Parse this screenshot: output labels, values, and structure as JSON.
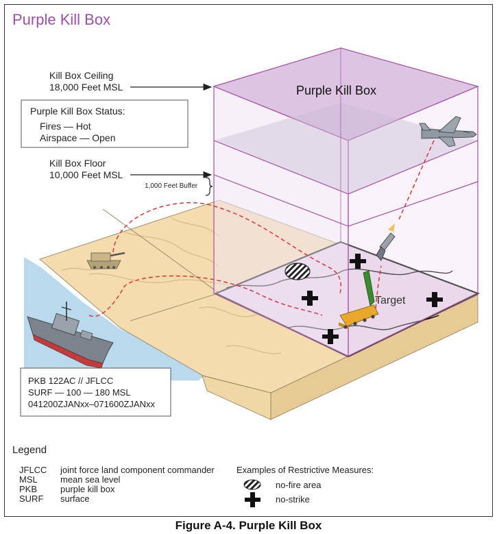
{
  "title": "Purple Kill Box",
  "box_label": "Purple Kill Box",
  "ceiling": {
    "line1": "Kill Box Ceiling",
    "line2": "18,000 Feet MSL"
  },
  "floor": {
    "line1": "Kill Box Floor",
    "line2": "10,000 Feet MSL"
  },
  "buffer_label": "1,000 Feet Buffer",
  "status": {
    "heading": "Purple Kill Box Status:",
    "fires": "Fires — Hot",
    "airspace": "Airspace — Open"
  },
  "info": {
    "line1": "PKB 122AC // JFLCC",
    "line2": "SURF — 100 — 180 MSL",
    "line3": "041200ZJANxx–071600ZJANxx"
  },
  "target_label": "Target",
  "legend": {
    "title": "Legend",
    "abbreviations": [
      {
        "abbr": "JFLCC",
        "meaning": "joint force land component commander"
      },
      {
        "abbr": "MSL",
        "meaning": "mean sea level"
      },
      {
        "abbr": "PKB",
        "meaning": "purple kill box"
      },
      {
        "abbr": "SURF",
        "meaning": "surface"
      }
    ],
    "examples_title": "Examples of Restrictive Measures:",
    "no_fire": "no-fire area",
    "no_strike": "no-strike"
  },
  "caption": "Figure A-4.  Purple Kill Box",
  "colors": {
    "title": "#9b4fa8",
    "box_edge": "#a64ca6",
    "box_top": "#dcc4e2",
    "box_side": "#ecdff0",
    "ground_top": "#f5dcae",
    "ground_side": "#ead29c",
    "water": "#b9d9ec",
    "missile_path": "#e0282d"
  }
}
